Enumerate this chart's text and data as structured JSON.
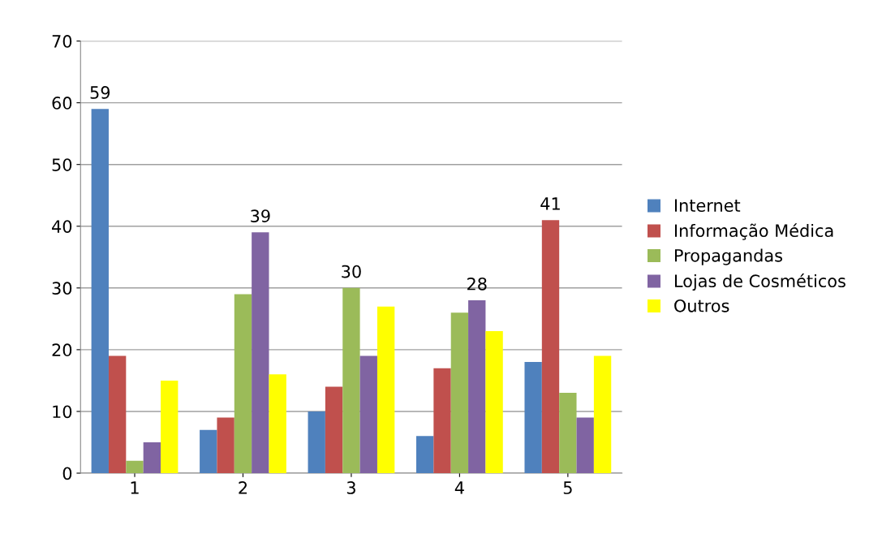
{
  "chart_data": {
    "type": "bar",
    "categories": [
      "1",
      "2",
      "3",
      "4",
      "5"
    ],
    "series": [
      {
        "name": "Internet",
        "color": "#4f81bd",
        "values": [
          59,
          7,
          10,
          6,
          18
        ],
        "value_labels": [
          "59",
          null,
          null,
          null,
          null
        ]
      },
      {
        "name": "Informação Médica",
        "color": "#c0504d",
        "values": [
          19,
          9,
          14,
          17,
          41
        ],
        "value_labels": [
          null,
          null,
          null,
          null,
          "41"
        ]
      },
      {
        "name": "Propagandas",
        "color": "#9bbb59",
        "values": [
          2,
          29,
          30,
          26,
          13
        ],
        "value_labels": [
          null,
          null,
          "30",
          null,
          null
        ]
      },
      {
        "name": "Lojas de Cosméticos",
        "color": "#8064a2",
        "values": [
          5,
          39,
          19,
          28,
          9
        ],
        "value_labels": [
          null,
          "39",
          null,
          "28",
          null
        ]
      },
      {
        "name": "Outros",
        "color": "#ffff00",
        "values": [
          15,
          16,
          27,
          23,
          19
        ],
        "value_labels": [
          null,
          null,
          null,
          null,
          null
        ]
      }
    ],
    "ylim": [
      0,
      70
    ],
    "yticks": [
      0,
      10,
      20,
      30,
      40,
      50,
      60,
      70
    ],
    "grid": "y",
    "legend": "right"
  }
}
